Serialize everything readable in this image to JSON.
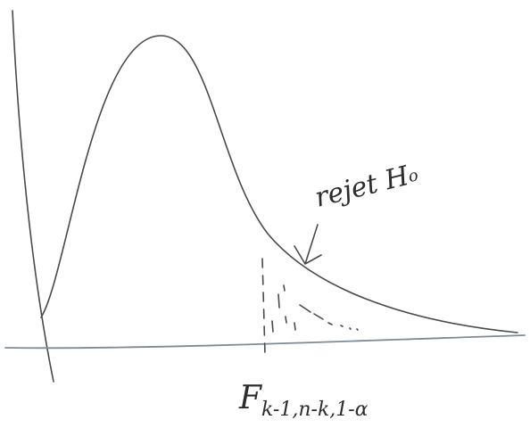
{
  "annotation": {
    "text": "rejet H",
    "subscript": "o"
  },
  "critical_value": {
    "symbol": "F",
    "subscript": "k-1,n-k,1-α"
  }
}
